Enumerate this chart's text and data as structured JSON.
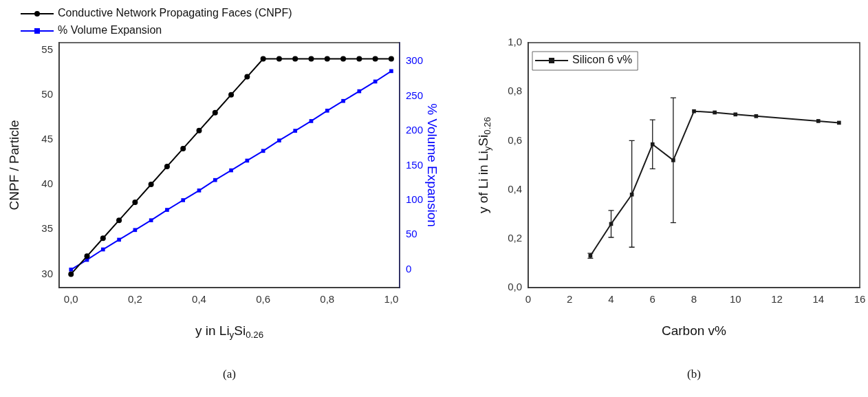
{
  "chart_data": [
    {
      "type": "line",
      "xlabel": "y in Li$_{y}$Si$_{0.26}$",
      "ylabel": "CNPF / Particle",
      "y2label": "% Volume Expansion",
      "annotations": [
        "(a)"
      ],
      "legend": "top",
      "grid": false,
      "x": [
        0,
        0.05,
        0.1,
        0.15,
        0.2,
        0.25,
        0.3,
        0.35,
        0.4,
        0.45,
        0.5,
        0.55,
        0.6,
        0.65,
        0.7,
        0.75,
        0.8,
        0.85,
        0.9,
        0.95,
        1.0
      ],
      "xlim": [
        -0.037,
        1.026
      ],
      "xticks": [
        {
          "value": 0,
          "label": "0,0"
        },
        {
          "value": 0.2,
          "label": "0,2"
        },
        {
          "value": 0.4,
          "label": "0,4"
        },
        {
          "value": 0.6,
          "label": "0,6"
        },
        {
          "value": 0.8,
          "label": "0,8"
        },
        {
          "value": 1,
          "label": "1,0"
        }
      ],
      "ylim": [
        28.5,
        55.8
      ],
      "yticks": [
        30,
        35,
        40,
        45,
        50,
        55
      ],
      "y2lim": [
        -26,
        327
      ],
      "y2ticks": [
        0,
        50,
        100,
        150,
        200,
        250,
        300
      ],
      "series": [
        {
          "name": "Conductive Network Propagating Faces (CNPF)",
          "color": "#000000",
          "marker": "circle",
          "values": [
            30,
            32,
            34,
            36,
            38,
            40,
            42,
            44,
            46,
            48,
            50,
            52,
            54,
            54,
            54,
            54,
            54,
            54,
            54,
            54,
            54
          ]
        },
        {
          "name": "% Volume Expansion",
          "color": "#0000ff",
          "marker": "square",
          "axis": "y2",
          "values": [
            0,
            14,
            29,
            43,
            57,
            71,
            86,
            100,
            114,
            129,
            143,
            157,
            171,
            186,
            200,
            214,
            229,
            243,
            257,
            271,
            286
          ]
        }
      ]
    },
    {
      "type": "line",
      "xlabel": "Carbon v%",
      "ylabel": "y of Li in Li$_{y}$Si$_{0.26}$",
      "annotations": [
        "(b)"
      ],
      "legend": "top left",
      "grid": false,
      "marker": "square",
      "x": [
        3,
        4,
        5,
        6,
        7,
        8,
        9,
        10,
        11,
        14,
        15
      ],
      "xlim": [
        0,
        16
      ],
      "xticks": [
        0,
        2,
        4,
        6,
        8,
        10,
        12,
        14,
        16
      ],
      "ylim": [
        0,
        1
      ],
      "yticks": [
        {
          "value": 0,
          "label": "0,0"
        },
        {
          "value": 0.2,
          "label": "0,2"
        },
        {
          "value": 0.4,
          "label": "0,4"
        },
        {
          "value": 0.6,
          "label": "0,6"
        },
        {
          "value": 0.8,
          "label": "0,8"
        },
        {
          "value": 1,
          "label": "1,0"
        }
      ],
      "series": [
        {
          "name": "Silicon 6 v%",
          "color": "#1a1a1a",
          "values": [
            0.13,
            0.26,
            0.38,
            0.585,
            0.52,
            0.72,
            0.715,
            0.707,
            0.7,
            0.68,
            0.673
          ],
          "errors": [
            [
              0.12,
              0.14
            ],
            [
              0.205,
              0.315
            ],
            [
              0.165,
              0.6
            ],
            [
              0.485,
              0.685
            ],
            [
              0.265,
              0.775
            ],
            null,
            null,
            null,
            null,
            null,
            null
          ]
        }
      ]
    }
  ]
}
